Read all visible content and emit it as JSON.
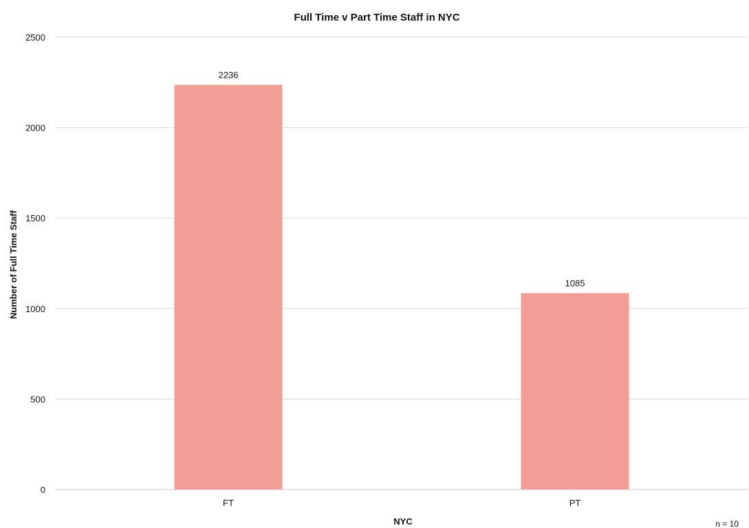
{
  "chart_data": {
    "type": "bar",
    "title": "Full Time v Part Time Staff in NYC",
    "xlabel": "NYC",
    "ylabel": "Number of Full Time Staff",
    "categories": [
      "FT",
      "PT"
    ],
    "values": [
      2236,
      1085
    ],
    "data_labels": [
      "2236",
      "1085"
    ],
    "ylim": [
      0,
      2500
    ],
    "yticks": [
      0,
      500,
      1000,
      1500,
      2000,
      2500
    ],
    "grid": true,
    "legend": "none",
    "bar_color": "#f09d95",
    "annotation": "n = 10"
  }
}
